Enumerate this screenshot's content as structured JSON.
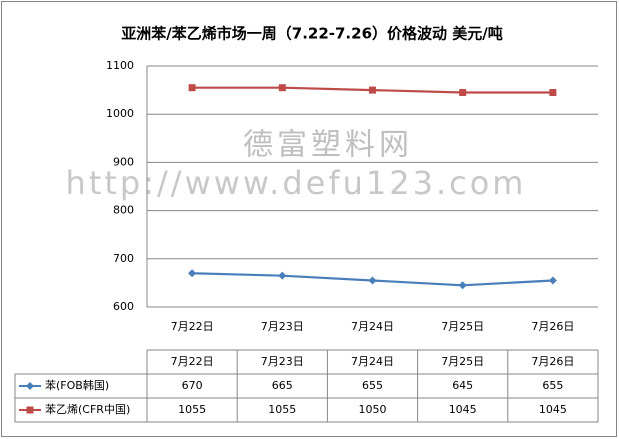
{
  "chart_data": {
    "type": "line",
    "title": "亚洲苯/苯乙烯市场一周（7.22-7.26）价格波动  美元/吨",
    "watermark": [
      "德富塑料网",
      "http://www.defu123.com"
    ],
    "categories": [
      "7月22日",
      "7月23日",
      "7月24日",
      "7月25日",
      "7月26日"
    ],
    "series": [
      {
        "name": "苯(FOB韩国)",
        "color": "#4a7ebb",
        "marker": "diamond",
        "values": [
          670,
          665,
          655,
          645,
          655
        ]
      },
      {
        "name": "苯乙烯(CFR中国)",
        "color": "#be4b48",
        "marker": "square",
        "values": [
          1055,
          1055,
          1050,
          1045,
          1045
        ]
      }
    ],
    "ylim": [
      600,
      1100
    ],
    "yticks": [
      600,
      700,
      800,
      900,
      1000,
      1100
    ],
    "grid": true,
    "data_table": true
  }
}
